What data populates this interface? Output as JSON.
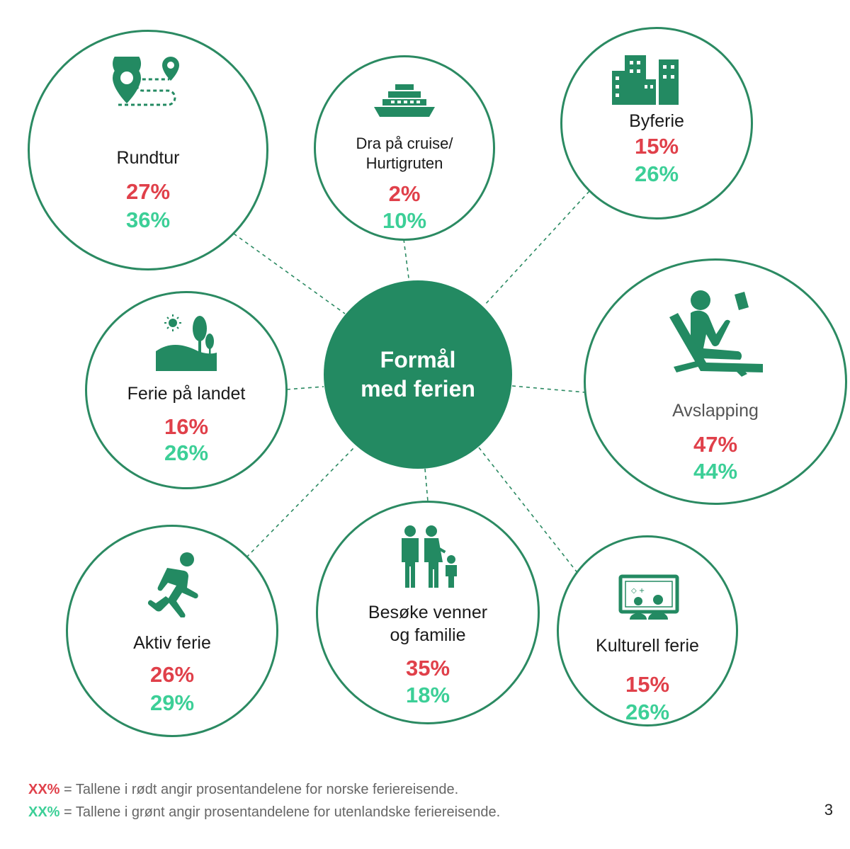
{
  "center": {
    "line1": "Formål",
    "line2": "med ferien"
  },
  "colors": {
    "circle_border": "#2b8a62",
    "center_fill": "#238a62",
    "norwegian": "#e0404a",
    "foreign": "#3ccf97"
  },
  "nodes": {
    "rundtur": {
      "label": "Rundtur",
      "no": "27%",
      "foreign": "36%",
      "icon": "map-route-icon"
    },
    "cruise": {
      "label1": "Dra på cruise/",
      "label2": "Hurtigruten",
      "no": "2%",
      "foreign": "10%",
      "icon": "cruise-ship-icon"
    },
    "byferie": {
      "label": "Byferie",
      "no": "15%",
      "foreign": "26%",
      "icon": "city-buildings-icon"
    },
    "landet": {
      "label": "Ferie på landet",
      "no": "16%",
      "foreign": "26%",
      "icon": "countryside-icon"
    },
    "avslapping": {
      "label": "Avslapping",
      "no": "47%",
      "foreign": "44%",
      "icon": "relaxing-person-icon"
    },
    "aktiv": {
      "label": "Aktiv ferie",
      "no": "26%",
      "foreign": "29%",
      "icon": "running-person-icon"
    },
    "besoke": {
      "label1": "Besøke venner",
      "label2": "og familie",
      "no": "35%",
      "foreign": "18%",
      "icon": "family-icon"
    },
    "kulturell": {
      "label": "Kulturell ferie",
      "no": "15%",
      "foreign": "26%",
      "icon": "museum-painting-icon"
    }
  },
  "legend": {
    "red_key": "XX%",
    "red_text": "= Tallene i rødt angir prosentandelene for norske feriereisende.",
    "green_key": "XX%",
    "green_text": "= Tallene i grønt angir prosentandelene for utenlandske feriereisende."
  },
  "page_number": "3"
}
